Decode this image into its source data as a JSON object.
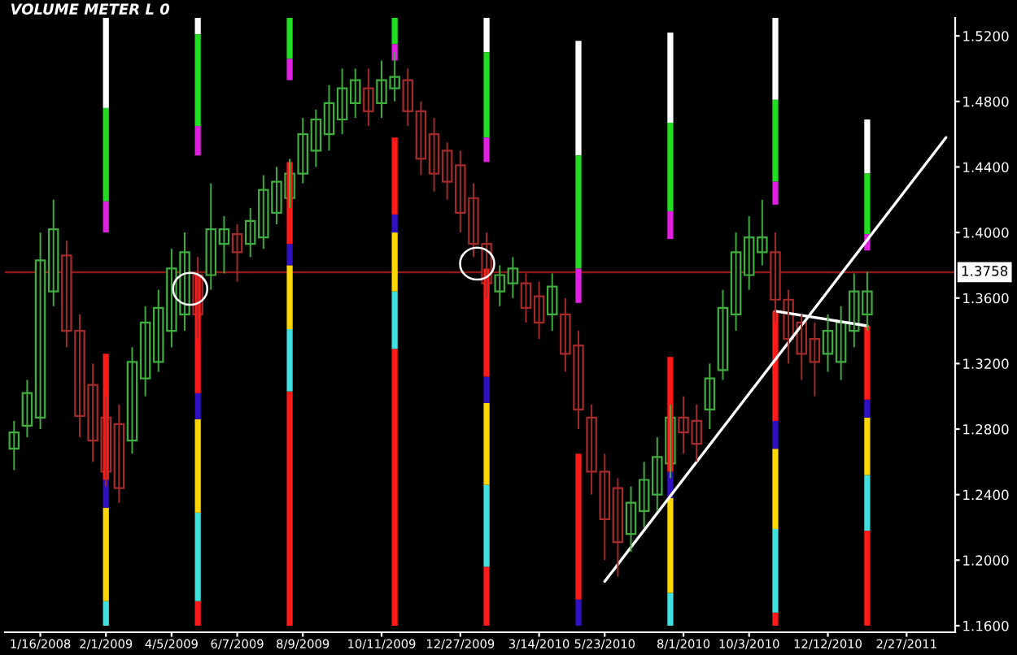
{
  "chart_data": {
    "type": "candlestick",
    "title": "VOLUME METER L 0",
    "categories": [
      null,
      null,
      "1/16/2008",
      null,
      null,
      null,
      null,
      "2/1/2009",
      null,
      null,
      null,
      null,
      "4/5/2009",
      null,
      null,
      null,
      null,
      "6/7/2009",
      null,
      null,
      null,
      null,
      "8/9/2009",
      null,
      null,
      null,
      null,
      null,
      "10/11/2009",
      null,
      null,
      null,
      null,
      null,
      "12/27/2009",
      null,
      null,
      null,
      null,
      null,
      "3/14/2010",
      null,
      null,
      null,
      null,
      "5/23/2010",
      null,
      null,
      null,
      null,
      null,
      "8/1/2010",
      null,
      null,
      null,
      null,
      "10/3/2010",
      null,
      null,
      null,
      null,
      null,
      "12/12/2010",
      null,
      null,
      null,
      null,
      null,
      "2/27/2011",
      null,
      null,
      null
    ],
    "ohlc": [
      [
        1.268,
        1.285,
        1.255,
        1.278
      ],
      [
        1.282,
        1.31,
        1.275,
        1.302
      ],
      [
        1.287,
        1.4,
        1.28,
        1.383
      ],
      [
        1.364,
        1.42,
        1.355,
        1.402
      ],
      [
        1.386,
        1.395,
        1.33,
        1.34
      ],
      [
        1.34,
        1.35,
        1.275,
        1.288
      ],
      [
        1.307,
        1.32,
        1.26,
        1.273
      ],
      [
        1.287,
        1.3,
        1.245,
        1.254
      ],
      [
        1.283,
        1.295,
        1.235,
        1.244
      ],
      [
        1.273,
        1.33,
        1.265,
        1.321
      ],
      [
        1.311,
        1.355,
        1.3,
        1.345
      ],
      [
        1.321,
        1.365,
        1.315,
        1.354
      ],
      [
        1.34,
        1.39,
        1.33,
        1.378
      ],
      [
        1.35,
        1.4,
        1.34,
        1.388
      ],
      [
        1.374,
        1.385,
        1.335,
        1.35
      ],
      [
        1.374,
        1.43,
        1.365,
        1.402
      ],
      [
        1.393,
        1.41,
        1.375,
        1.402
      ],
      [
        1.399,
        1.405,
        1.37,
        1.388
      ],
      [
        1.393,
        1.415,
        1.385,
        1.407
      ],
      [
        1.397,
        1.435,
        1.39,
        1.426
      ],
      [
        1.412,
        1.44,
        1.405,
        1.431
      ],
      [
        1.421,
        1.445,
        1.415,
        1.436
      ],
      [
        1.436,
        1.47,
        1.43,
        1.46
      ],
      [
        1.45,
        1.475,
        1.44,
        1.469
      ],
      [
        1.46,
        1.49,
        1.45,
        1.479
      ],
      [
        1.469,
        1.5,
        1.46,
        1.488
      ],
      [
        1.479,
        1.5,
        1.47,
        1.493
      ],
      [
        1.488,
        1.5,
        1.465,
        1.474
      ],
      [
        1.479,
        1.505,
        1.47,
        1.493
      ],
      [
        1.488,
        1.51,
        1.48,
        1.495
      ],
      [
        1.493,
        1.5,
        1.465,
        1.474
      ],
      [
        1.474,
        1.48,
        1.435,
        1.445
      ],
      [
        1.46,
        1.47,
        1.425,
        1.436
      ],
      [
        1.45,
        1.455,
        1.42,
        1.431
      ],
      [
        1.441,
        1.45,
        1.4,
        1.412
      ],
      [
        1.421,
        1.43,
        1.385,
        1.393
      ],
      [
        1.393,
        1.4,
        1.36,
        1.369
      ],
      [
        1.364,
        1.38,
        1.355,
        1.374
      ],
      [
        1.369,
        1.385,
        1.36,
        1.378
      ],
      [
        1.369,
        1.375,
        1.345,
        1.354
      ],
      [
        1.361,
        1.37,
        1.335,
        1.345
      ],
      [
        1.35,
        1.375,
        1.34,
        1.367
      ],
      [
        1.35,
        1.36,
        1.315,
        1.326
      ],
      [
        1.331,
        1.34,
        1.28,
        1.292
      ],
      [
        1.287,
        1.295,
        1.24,
        1.254
      ],
      [
        1.254,
        1.265,
        1.2,
        1.225
      ],
      [
        1.244,
        1.25,
        1.19,
        1.211
      ],
      [
        1.216,
        1.245,
        1.205,
        1.235
      ],
      [
        1.23,
        1.26,
        1.22,
        1.249
      ],
      [
        1.24,
        1.275,
        1.23,
        1.263
      ],
      [
        1.259,
        1.295,
        1.25,
        1.287
      ],
      [
        1.287,
        1.3,
        1.265,
        1.278
      ],
      [
        1.285,
        1.295,
        1.26,
        1.271
      ],
      [
        1.292,
        1.32,
        1.28,
        1.311
      ],
      [
        1.316,
        1.365,
        1.31,
        1.354
      ],
      [
        1.35,
        1.4,
        1.34,
        1.388
      ],
      [
        1.374,
        1.41,
        1.365,
        1.397
      ],
      [
        1.388,
        1.42,
        1.38,
        1.397
      ],
      [
        1.388,
        1.4,
        1.345,
        1.359
      ],
      [
        1.359,
        1.365,
        1.32,
        1.335
      ],
      [
        1.345,
        1.35,
        1.31,
        1.326
      ],
      [
        1.335,
        1.345,
        1.3,
        1.321
      ],
      [
        1.326,
        1.35,
        1.315,
        1.34
      ],
      [
        1.321,
        1.355,
        1.31,
        1.345
      ],
      [
        1.34,
        1.375,
        1.33,
        1.364
      ],
      [
        1.35,
        1.376,
        1.34,
        1.364
      ],
      null,
      null,
      null,
      null,
      null,
      null
    ],
    "colors": [
      "#3fae3f",
      "#3fae3f",
      "#3fae3f",
      "#3fae3f",
      "#a52a2a",
      "#a52a2a",
      "#a52a2a",
      "#a52a2a",
      "#a52a2a",
      "#3fae3f",
      "#3fae3f",
      "#3fae3f",
      "#3fae3f",
      "#3fae3f",
      "#a52a2a",
      "#3fae3f",
      "#3fae3f",
      "#a52a2a",
      "#3fae3f",
      "#3fae3f",
      "#3fae3f",
      "#3fae3f",
      "#3fae3f",
      "#3fae3f",
      "#3fae3f",
      "#3fae3f",
      "#3fae3f",
      "#a52a2a",
      "#3fae3f",
      "#3fae3f",
      "#a52a2a",
      "#a52a2a",
      "#a52a2a",
      "#a52a2a",
      "#a52a2a",
      "#a52a2a",
      "#a52a2a",
      "#3fae3f",
      "#3fae3f",
      "#a52a2a",
      "#a52a2a",
      "#3fae3f",
      "#a52a2a",
      "#a52a2a",
      "#a52a2a",
      "#a52a2a",
      "#a52a2a",
      "#3fae3f",
      "#3fae3f",
      "#3fae3f",
      "#3fae3f",
      "#a52a2a",
      "#a52a2a",
      "#3fae3f",
      "#3fae3f",
      "#3fae3f",
      "#3fae3f",
      "#3fae3f",
      "#a52a2a",
      "#a52a2a",
      "#a52a2a",
      "#a52a2a",
      "#3fae3f",
      "#3fae3f",
      "#3fae3f",
      "#3fae3f",
      null,
      null,
      null,
      null,
      null,
      null
    ],
    "series": [
      {
        "type": "bar",
        "color": "#ff1a1a",
        "base": [
          null,
          null,
          null,
          null,
          null,
          null,
          null,
          null,
          null,
          null,
          null,
          null,
          null,
          null,
          1.16,
          null,
          null,
          null,
          null,
          null,
          null,
          1.16,
          null,
          null,
          null,
          null,
          null,
          null,
          null,
          1.16,
          null,
          null,
          null,
          null,
          null,
          null,
          1.16,
          null,
          null,
          null,
          null,
          null,
          null,
          null,
          null,
          null,
          null,
          null,
          null,
          null,
          null,
          null,
          null,
          null,
          null,
          null,
          null,
          null,
          1.16,
          null,
          null,
          null,
          null,
          null,
          null,
          1.16,
          null,
          null,
          null,
          null,
          null,
          null
        ],
        "values": [
          null,
          null,
          null,
          null,
          null,
          null,
          null,
          null,
          null,
          null,
          null,
          null,
          null,
          null,
          0.015,
          null,
          null,
          null,
          null,
          null,
          null,
          0.143,
          null,
          null,
          null,
          null,
          null,
          null,
          null,
          0.169,
          null,
          null,
          null,
          null,
          null,
          null,
          0.036,
          null,
          null,
          null,
          null,
          null,
          null,
          null,
          null,
          null,
          null,
          null,
          null,
          null,
          null,
          null,
          null,
          null,
          null,
          null,
          null,
          null,
          0.008,
          null,
          null,
          null,
          null,
          null,
          null,
          0.058,
          null,
          null,
          null,
          null,
          null,
          null
        ]
      },
      {
        "type": "bar",
        "color": "#40e0e0",
        "base": [
          null,
          null,
          null,
          null,
          null,
          null,
          null,
          1.16,
          null,
          null,
          null,
          null,
          null,
          null,
          1.175,
          null,
          null,
          null,
          null,
          null,
          null,
          1.303,
          null,
          null,
          null,
          null,
          null,
          null,
          null,
          1.329,
          null,
          null,
          null,
          null,
          null,
          null,
          1.196,
          null,
          null,
          null,
          null,
          null,
          null,
          null,
          null,
          null,
          null,
          null,
          null,
          null,
          1.16,
          null,
          null,
          null,
          null,
          null,
          null,
          null,
          1.168,
          null,
          null,
          null,
          null,
          null,
          null,
          1.218,
          null,
          null,
          null,
          null,
          null,
          null
        ],
        "values": [
          null,
          null,
          null,
          null,
          null,
          null,
          null,
          0.015,
          null,
          null,
          null,
          null,
          null,
          null,
          0.054,
          null,
          null,
          null,
          null,
          null,
          null,
          0.038,
          null,
          null,
          null,
          null,
          null,
          null,
          null,
          0.035,
          null,
          null,
          null,
          null,
          null,
          null,
          0.05,
          null,
          null,
          null,
          null,
          null,
          null,
          null,
          null,
          null,
          null,
          null,
          null,
          null,
          0.02,
          null,
          null,
          null,
          null,
          null,
          null,
          null,
          0.051,
          null,
          null,
          null,
          null,
          null,
          null,
          0.034,
          null,
          null,
          null,
          null,
          null,
          null
        ]
      },
      {
        "type": "bar",
        "color": "#ffd700",
        "base": [
          null,
          null,
          null,
          null,
          null,
          null,
          null,
          1.175,
          null,
          null,
          null,
          null,
          null,
          null,
          1.229,
          null,
          null,
          null,
          null,
          null,
          null,
          1.341,
          null,
          null,
          null,
          null,
          null,
          null,
          null,
          1.364,
          null,
          null,
          null,
          null,
          null,
          null,
          1.246,
          null,
          null,
          null,
          null,
          null,
          null,
          null,
          null,
          null,
          null,
          null,
          null,
          null,
          1.18,
          null,
          null,
          null,
          null,
          null,
          null,
          null,
          1.219,
          null,
          null,
          null,
          null,
          null,
          null,
          1.252,
          null,
          null,
          null,
          null,
          null,
          null
        ],
        "values": [
          null,
          null,
          null,
          null,
          null,
          null,
          null,
          0.057,
          null,
          null,
          null,
          null,
          null,
          null,
          0.057,
          null,
          null,
          null,
          null,
          null,
          null,
          0.039,
          null,
          null,
          null,
          null,
          null,
          null,
          null,
          0.036,
          null,
          null,
          null,
          null,
          null,
          null,
          0.05,
          null,
          null,
          null,
          null,
          null,
          null,
          null,
          null,
          null,
          null,
          null,
          null,
          null,
          0.058,
          null,
          null,
          null,
          null,
          null,
          null,
          null,
          0.049,
          null,
          null,
          null,
          null,
          null,
          null,
          0.035,
          null,
          null,
          null,
          null,
          null,
          null
        ]
      },
      {
        "type": "bar",
        "color": "#3010c0",
        "base": [
          null,
          null,
          null,
          null,
          null,
          null,
          null,
          1.232,
          null,
          null,
          null,
          null,
          null,
          null,
          1.286,
          null,
          null,
          null,
          null,
          null,
          null,
          1.38,
          null,
          null,
          null,
          null,
          null,
          null,
          null,
          1.4,
          null,
          null,
          null,
          null,
          null,
          null,
          1.296,
          null,
          null,
          null,
          null,
          null,
          null,
          1.16,
          null,
          null,
          null,
          null,
          null,
          null,
          1.238,
          null,
          null,
          null,
          null,
          null,
          null,
          null,
          1.268,
          null,
          null,
          null,
          null,
          null,
          null,
          1.287,
          null,
          null,
          null,
          null,
          null,
          null
        ],
        "values": [
          null,
          null,
          null,
          null,
          null,
          null,
          null,
          0.017,
          null,
          null,
          null,
          null,
          null,
          null,
          0.016,
          null,
          null,
          null,
          null,
          null,
          null,
          0.013,
          null,
          null,
          null,
          null,
          null,
          null,
          null,
          0.011,
          null,
          null,
          null,
          null,
          null,
          null,
          0.016,
          null,
          null,
          null,
          null,
          null,
          null,
          0.016,
          null,
          null,
          null,
          null,
          null,
          null,
          0.016,
          null,
          null,
          null,
          null,
          null,
          null,
          null,
          0.017,
          null,
          null,
          null,
          null,
          null,
          null,
          0.011,
          null,
          null,
          null,
          null,
          null,
          null
        ]
      },
      {
        "type": "bar",
        "color": "#ff1a1a",
        "base": [
          null,
          null,
          null,
          null,
          null,
          null,
          null,
          1.249,
          null,
          null,
          null,
          null,
          null,
          null,
          1.302,
          null,
          null,
          null,
          null,
          null,
          null,
          1.393,
          null,
          null,
          null,
          null,
          null,
          null,
          null,
          1.411,
          null,
          null,
          null,
          null,
          null,
          null,
          1.312,
          null,
          null,
          null,
          null,
          null,
          null,
          1.176,
          null,
          null,
          null,
          null,
          null,
          null,
          1.254,
          null,
          null,
          null,
          null,
          null,
          null,
          null,
          1.285,
          null,
          null,
          null,
          null,
          null,
          null,
          1.298,
          null,
          null,
          null,
          null,
          null,
          null
        ],
        "values": [
          null,
          null,
          null,
          null,
          null,
          null,
          null,
          0.077,
          null,
          null,
          null,
          null,
          null,
          null,
          0.072,
          null,
          null,
          null,
          null,
          null,
          null,
          0.05,
          null,
          null,
          null,
          null,
          null,
          null,
          null,
          0.047,
          null,
          null,
          null,
          null,
          null,
          null,
          0.066,
          null,
          null,
          null,
          null,
          null,
          null,
          0.089,
          null,
          null,
          null,
          null,
          null,
          null,
          0.07,
          null,
          null,
          null,
          null,
          null,
          null,
          null,
          0.067,
          null,
          null,
          null,
          null,
          null,
          null,
          0.045,
          null,
          null,
          null,
          null,
          null,
          null
        ]
      },
      {
        "type": "bar",
        "color": "#ffffff",
        "base": [
          null,
          null,
          null,
          null,
          null,
          null,
          null,
          1.476,
          null,
          null,
          null,
          null,
          null,
          null,
          1.521,
          null,
          null,
          null,
          null,
          null,
          null,
          null,
          null,
          null,
          null,
          null,
          null,
          null,
          null,
          null,
          null,
          null,
          null,
          null,
          null,
          null,
          1.51,
          null,
          null,
          null,
          null,
          null,
          null,
          1.447,
          null,
          null,
          null,
          null,
          null,
          null,
          1.467,
          null,
          null,
          null,
          null,
          null,
          null,
          null,
          1.481,
          null,
          null,
          null,
          null,
          null,
          null,
          1.436,
          null,
          null,
          null,
          null,
          null,
          null
        ],
        "values": [
          null,
          null,
          null,
          null,
          null,
          null,
          null,
          0.055,
          null,
          null,
          null,
          null,
          null,
          null,
          0.01,
          null,
          null,
          null,
          null,
          null,
          null,
          null,
          null,
          null,
          null,
          null,
          null,
          null,
          null,
          null,
          null,
          null,
          null,
          null,
          null,
          null,
          0.021,
          null,
          null,
          null,
          null,
          null,
          null,
          0.07,
          null,
          null,
          null,
          null,
          null,
          null,
          0.055,
          null,
          null,
          null,
          null,
          null,
          null,
          null,
          0.05,
          null,
          null,
          null,
          null,
          null,
          null,
          0.033,
          null,
          null,
          null,
          null,
          null,
          null
        ]
      },
      {
        "type": "bar",
        "color": "#22dd22",
        "base": [
          null,
          null,
          null,
          null,
          null,
          null,
          null,
          1.419,
          null,
          null,
          null,
          null,
          null,
          null,
          1.465,
          null,
          null,
          null,
          null,
          null,
          null,
          1.506,
          null,
          null,
          null,
          null,
          null,
          null,
          null,
          1.515,
          null,
          null,
          null,
          null,
          null,
          null,
          1.458,
          null,
          null,
          null,
          null,
          null,
          null,
          1.378,
          null,
          null,
          null,
          null,
          null,
          null,
          1.413,
          null,
          null,
          null,
          null,
          null,
          null,
          null,
          1.431,
          null,
          null,
          null,
          null,
          null,
          null,
          1.399,
          null,
          null,
          null,
          null,
          null,
          null
        ],
        "values": [
          null,
          null,
          null,
          null,
          null,
          null,
          null,
          0.057,
          null,
          null,
          null,
          null,
          null,
          null,
          0.056,
          null,
          null,
          null,
          null,
          null,
          null,
          0.025,
          null,
          null,
          null,
          null,
          null,
          null,
          null,
          0.016,
          null,
          null,
          null,
          null,
          null,
          null,
          0.052,
          null,
          null,
          null,
          null,
          null,
          null,
          0.069,
          null,
          null,
          null,
          null,
          null,
          null,
          0.054,
          null,
          null,
          null,
          null,
          null,
          null,
          null,
          0.05,
          null,
          null,
          null,
          null,
          null,
          null,
          0.037,
          null,
          null,
          null,
          null,
          null,
          null
        ]
      },
      {
        "type": "bar",
        "color": "#e020e0",
        "base": [
          null,
          null,
          null,
          null,
          null,
          null,
          null,
          1.4,
          null,
          null,
          null,
          null,
          null,
          null,
          1.447,
          null,
          null,
          null,
          null,
          null,
          null,
          1.493,
          null,
          null,
          null,
          null,
          null,
          null,
          null,
          1.505,
          null,
          null,
          null,
          null,
          null,
          null,
          1.443,
          null,
          null,
          null,
          null,
          null,
          null,
          1.357,
          null,
          null,
          null,
          null,
          null,
          null,
          1.396,
          null,
          null,
          null,
          null,
          null,
          null,
          null,
          1.417,
          null,
          null,
          null,
          null,
          null,
          null,
          1.389,
          null,
          null,
          null,
          null,
          null,
          null
        ],
        "values": [
          null,
          null,
          null,
          null,
          null,
          null,
          null,
          0.019,
          null,
          null,
          null,
          null,
          null,
          null,
          0.018,
          null,
          null,
          null,
          null,
          null,
          null,
          0.013,
          null,
          null,
          null,
          null,
          null,
          null,
          null,
          0.01,
          null,
          null,
          null,
          null,
          null,
          null,
          0.015,
          null,
          null,
          null,
          null,
          null,
          null,
          0.021,
          null,
          null,
          null,
          null,
          null,
          null,
          0.017,
          null,
          null,
          null,
          null,
          null,
          null,
          null,
          0.014,
          null,
          null,
          null,
          null,
          null,
          null,
          0.01,
          null,
          null,
          null,
          null,
          null,
          null
        ]
      },
      {
        "type": "line",
        "color": "#ffffff",
        "values": [
          null,
          null,
          null,
          null,
          null,
          null,
          null,
          null,
          null,
          null,
          null,
          null,
          null,
          null,
          null,
          null,
          null,
          null,
          null,
          null,
          null,
          null,
          null,
          null,
          null,
          null,
          null,
          null,
          null,
          null,
          null,
          null,
          null,
          null,
          null,
          null,
          null,
          null,
          null,
          null,
          null,
          null,
          null,
          null,
          null,
          1.187,
          null,
          null,
          null,
          null,
          null,
          null,
          null,
          null,
          null,
          null,
          null,
          null,
          null,
          null,
          null,
          null,
          null,
          null,
          null,
          null,
          null,
          null,
          null,
          null,
          null,
          1.458
        ]
      },
      {
        "type": "line",
        "color": "#ffffff",
        "values": [
          null,
          null,
          null,
          null,
          null,
          null,
          null,
          null,
          null,
          null,
          null,
          null,
          null,
          null,
          null,
          null,
          null,
          null,
          null,
          null,
          null,
          null,
          null,
          null,
          null,
          null,
          null,
          null,
          null,
          null,
          null,
          null,
          null,
          null,
          null,
          null,
          null,
          null,
          null,
          null,
          null,
          null,
          null,
          null,
          null,
          null,
          null,
          null,
          null,
          null,
          null,
          null,
          null,
          null,
          null,
          null,
          null,
          null,
          1.352,
          null,
          null,
          null,
          null,
          null,
          null,
          1.343,
          null,
          null,
          null,
          null,
          null,
          null
        ]
      }
    ],
    "ylim": [
      1.156,
      1.531
    ],
    "yticks": [
      {
        "value": 1.16,
        "label": "1.1600"
      },
      {
        "value": 1.2,
        "label": "1.2000"
      },
      {
        "value": 1.24,
        "label": "1.2400"
      },
      {
        "value": 1.28,
        "label": "1.2800"
      },
      {
        "value": 1.32,
        "label": "1.3200"
      },
      {
        "value": 1.36,
        "label": "1.3600"
      },
      {
        "value": 1.4,
        "label": "1.4000"
      },
      {
        "value": 1.44,
        "label": "1.4400"
      },
      {
        "value": 1.48,
        "label": "1.4800"
      },
      {
        "value": 1.52,
        "label": "1.5200"
      }
    ],
    "ref_lines": [
      {
        "axis": "y",
        "value": 1.3758,
        "label": "1.3758",
        "color": "#8b1a1a"
      }
    ]
  }
}
